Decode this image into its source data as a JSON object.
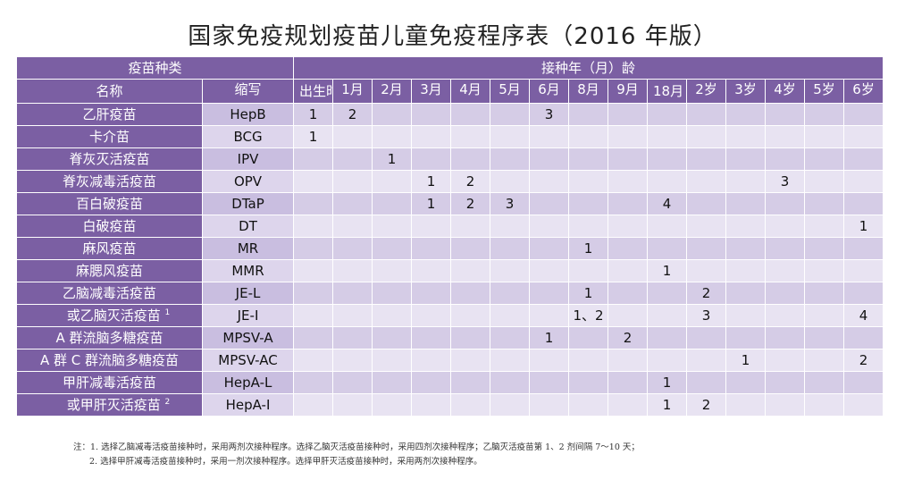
{
  "title": "国家免疫规划疫苗儿童免疫程序表（2016 年版）",
  "header": {
    "vaccine_type": "疫苗种类",
    "age": "接种年（月）龄",
    "name": "名称",
    "abbr": "缩写",
    "ages": [
      "出生时",
      "1月",
      "2月",
      "3月",
      "4月",
      "5月",
      "6月",
      "8月",
      "9月",
      "18月",
      "2岁",
      "3岁",
      "4岁",
      "5岁",
      "6岁"
    ]
  },
  "rows": [
    {
      "name": "乙肝疫苗",
      "abbr": "HepB",
      "doses": [
        "1",
        "2",
        "",
        "",
        "",
        "",
        "3",
        "",
        "",
        "",
        "",
        "",
        "",
        "",
        ""
      ]
    },
    {
      "name": "卡介苗",
      "abbr": "BCG",
      "doses": [
        "1",
        "",
        "",
        "",
        "",
        "",
        "",
        "",
        "",
        "",
        "",
        "",
        "",
        "",
        ""
      ]
    },
    {
      "name": "脊灰灭活疫苗",
      "abbr": "IPV",
      "doses": [
        "",
        "",
        "1",
        "",
        "",
        "",
        "",
        "",
        "",
        "",
        "",
        "",
        "",
        "",
        ""
      ]
    },
    {
      "name": "脊灰减毒活疫苗",
      "abbr": "OPV",
      "doses": [
        "",
        "",
        "",
        "1",
        "2",
        "",
        "",
        "",
        "",
        "",
        "",
        "",
        "3",
        "",
        ""
      ]
    },
    {
      "name": "百白破疫苗",
      "abbr": "DTaP",
      "doses": [
        "",
        "",
        "",
        "1",
        "2",
        "3",
        "",
        "",
        "",
        "4",
        "",
        "",
        "",
        "",
        ""
      ]
    },
    {
      "name": "白破疫苗",
      "abbr": "DT",
      "doses": [
        "",
        "",
        "",
        "",
        "",
        "",
        "",
        "",
        "",
        "",
        "",
        "",
        "",
        "",
        "1"
      ]
    },
    {
      "name": "麻风疫苗",
      "abbr": "MR",
      "doses": [
        "",
        "",
        "",
        "",
        "",
        "",
        "",
        "1",
        "",
        "",
        "",
        "",
        "",
        "",
        ""
      ]
    },
    {
      "name": "麻腮风疫苗",
      "abbr": "MMR",
      "doses": [
        "",
        "",
        "",
        "",
        "",
        "",
        "",
        "",
        "",
        "1",
        "",
        "",
        "",
        "",
        ""
      ]
    },
    {
      "name": "乙脑减毒活疫苗",
      "abbr": "JE-L",
      "doses": [
        "",
        "",
        "",
        "",
        "",
        "",
        "",
        "1",
        "",
        "",
        "2",
        "",
        "",
        "",
        ""
      ]
    },
    {
      "name": "或乙脑灭活疫苗",
      "sup": "1",
      "abbr": "JE-I",
      "doses": [
        "",
        "",
        "",
        "",
        "",
        "",
        "",
        "1、2",
        "",
        "",
        "3",
        "",
        "",
        "",
        "4"
      ]
    },
    {
      "name": "A 群流脑多糖疫苗",
      "abbr": "MPSV-A",
      "doses": [
        "",
        "",
        "",
        "",
        "",
        "",
        "1",
        "",
        "2",
        "",
        "",
        "",
        "",
        "",
        ""
      ]
    },
    {
      "name": "A 群 C 群流脑多糖疫苗",
      "abbr": "MPSV-AC",
      "doses": [
        "",
        "",
        "",
        "",
        "",
        "",
        "",
        "",
        "",
        "",
        "",
        "1",
        "",
        "",
        "2"
      ]
    },
    {
      "name": "甲肝减毒活疫苗",
      "abbr": "HepA-L",
      "doses": [
        "",
        "",
        "",
        "",
        "",
        "",
        "",
        "",
        "",
        "1",
        "",
        "",
        "",
        "",
        ""
      ]
    },
    {
      "name": "或甲肝灭活疫苗",
      "sup": "2",
      "abbr": "HepA-I",
      "doses": [
        "",
        "",
        "",
        "",
        "",
        "",
        "",
        "",
        "",
        "1",
        "2",
        "",
        "",
        "",
        ""
      ]
    }
  ],
  "notes": [
    "注：1. 选择乙脑减毒活疫苗接种时，采用两剂次接种程序。选择乙脑灭活疫苗接种时，采用四剂次接种程序；乙脑灭活疫苗第 1、2 剂间隔 7～10 天；",
    "2. 选择甲肝减毒活疫苗接种时，采用一剂次接种程序。选择甲肝灭活疫苗接种时，采用两剂次接种程序。"
  ]
}
